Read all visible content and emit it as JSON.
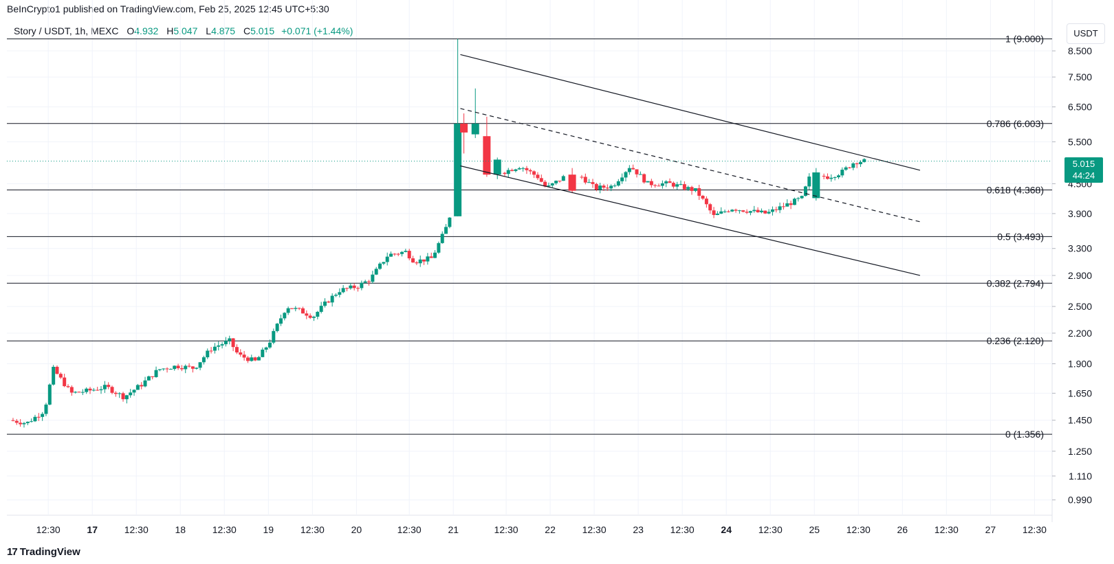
{
  "header": {
    "published": "BeInCrypto1 published on TradingView.com, Feb 25, 2025 12:45 UTC+5:30"
  },
  "legend": {
    "symbol": "Story / USDT, 1h, MEXC",
    "open_label": "O",
    "open": "4.932",
    "high_label": "H",
    "high": "5.047",
    "low_label": "L",
    "low": "4.875",
    "close_label": "C",
    "close": "5.015",
    "change": "+0.071 (+1.44%)"
  },
  "unit_button": "USDT",
  "last_price": {
    "value": "5.015",
    "countdown": "44:24"
  },
  "footer": {
    "logo": "17",
    "brand": "TradingView"
  },
  "colors": {
    "up": "#089981",
    "down": "#f23645",
    "line": "#131722",
    "grid": "#f0f3fa",
    "price_line": "#089981"
  },
  "chart_data": {
    "type": "candlestick",
    "y_axis": {
      "min": 0.92,
      "max": 9.2,
      "ticks": [
        "8.500",
        "7.500",
        "6.500",
        "5.500",
        "4.500",
        "3.900",
        "3.300",
        "2.900",
        "2.500",
        "2.200",
        "1.900",
        "1.650",
        "1.450",
        "1.250",
        "1.110",
        "0.990"
      ]
    },
    "x_axis": {
      "ticks": [
        {
          "t": 0.4,
          "label": "12:30"
        },
        {
          "t": 0.9,
          "label": "17",
          "bold": true
        },
        {
          "t": 1.4,
          "label": "12:30"
        },
        {
          "t": 1.9,
          "label": "18"
        },
        {
          "t": 2.4,
          "label": "12:30"
        },
        {
          "t": 2.9,
          "label": "19"
        },
        {
          "t": 3.4,
          "label": "12:30"
        },
        {
          "t": 3.9,
          "label": "20"
        },
        {
          "t": 4.5,
          "label": "12:30"
        },
        {
          "t": 5.0,
          "label": "21"
        },
        {
          "t": 5.6,
          "label": "12:30"
        },
        {
          "t": 6.1,
          "label": "22"
        },
        {
          "t": 6.6,
          "label": "12:30"
        },
        {
          "t": 7.1,
          "label": "23"
        },
        {
          "t": 7.6,
          "label": "12:30"
        },
        {
          "t": 8.1,
          "label": "24",
          "bold": true
        },
        {
          "t": 8.6,
          "label": "12:30"
        },
        {
          "t": 9.1,
          "label": "25"
        },
        {
          "t": 9.6,
          "label": "12:30"
        },
        {
          "t": 10.1,
          "label": "26"
        },
        {
          "t": 10.6,
          "label": "12:30"
        },
        {
          "t": 11.1,
          "label": "27"
        },
        {
          "t": 11.6,
          "label": "12:30"
        }
      ]
    },
    "fib_levels": [
      {
        "price": 9.0,
        "label": "1 (9.000)"
      },
      {
        "price": 6.003,
        "label": "0.786 (6.003)"
      },
      {
        "price": 4.368,
        "label": "0.618 (4.368)"
      },
      {
        "price": 3.493,
        "label": "0.5 (3.493)"
      },
      {
        "price": 2.794,
        "label": "0.382 (2.794)"
      },
      {
        "price": 2.12,
        "label": "0.236 (2.120)"
      },
      {
        "price": 1.356,
        "label": "0 (1.356)"
      }
    ],
    "channel": {
      "upper": [
        [
          5.08,
          8.35
        ],
        [
          10.3,
          4.8
        ]
      ],
      "middle": [
        [
          5.08,
          6.45
        ],
        [
          10.3,
          3.75
        ]
      ],
      "lower": [
        [
          5.08,
          4.9
        ],
        [
          10.3,
          2.9
        ]
      ]
    },
    "keypoints": [
      [
        0.0,
        1.45
      ],
      [
        0.2,
        1.43
      ],
      [
        0.4,
        1.52
      ],
      [
        0.5,
        1.85
      ],
      [
        0.6,
        1.75
      ],
      [
        0.7,
        1.65
      ],
      [
        0.9,
        1.67
      ],
      [
        1.1,
        1.7
      ],
      [
        1.3,
        1.62
      ],
      [
        1.5,
        1.72
      ],
      [
        1.7,
        1.85
      ],
      [
        1.9,
        1.88
      ],
      [
        2.1,
        1.86
      ],
      [
        2.3,
        2.05
      ],
      [
        2.5,
        2.12
      ],
      [
        2.6,
        1.98
      ],
      [
        2.8,
        1.92
      ],
      [
        2.95,
        2.1
      ],
      [
        3.15,
        2.5
      ],
      [
        3.3,
        2.45
      ],
      [
        3.45,
        2.38
      ],
      [
        3.6,
        2.55
      ],
      [
        3.75,
        2.7
      ],
      [
        3.95,
        2.75
      ],
      [
        4.1,
        2.85
      ],
      [
        4.3,
        3.2
      ],
      [
        4.5,
        3.25
      ],
      [
        4.6,
        3.1
      ],
      [
        4.8,
        3.15
      ],
      [
        4.95,
        3.6
      ],
      [
        5.0,
        3.85
      ],
      [
        5.05,
        6.0
      ],
      [
        5.15,
        5.8
      ],
      [
        5.3,
        5.85
      ],
      [
        5.45,
        4.65
      ],
      [
        5.6,
        4.75
      ],
      [
        5.8,
        4.9
      ],
      [
        6.0,
        4.65
      ],
      [
        6.1,
        4.4
      ],
      [
        6.3,
        4.65
      ],
      [
        6.5,
        4.65
      ],
      [
        6.65,
        4.4
      ],
      [
        6.85,
        4.45
      ],
      [
        7.05,
        4.9
      ],
      [
        7.25,
        4.5
      ],
      [
        7.5,
        4.5
      ],
      [
        7.8,
        4.35
      ],
      [
        8.0,
        3.85
      ],
      [
        8.2,
        4.0
      ],
      [
        8.4,
        3.95
      ],
      [
        8.6,
        3.9
      ],
      [
        8.8,
        4.05
      ],
      [
        9.0,
        4.2
      ],
      [
        9.1,
        4.7
      ],
      [
        9.3,
        4.65
      ],
      [
        9.45,
        4.75
      ],
      [
        9.6,
        5.0
      ],
      [
        9.7,
        5.015
      ]
    ],
    "big_candles": [
      {
        "t": 5.05,
        "o": 3.85,
        "h": 9.0,
        "l": 3.85,
        "c": 6.0
      },
      {
        "t": 5.12,
        "o": 6.0,
        "h": 6.3,
        "l": 5.2,
        "c": 5.75
      },
      {
        "t": 5.25,
        "o": 5.7,
        "h": 7.1,
        "l": 5.6,
        "c": 6.0
      },
      {
        "t": 5.38,
        "o": 5.65,
        "h": 6.2,
        "l": 4.65,
        "c": 4.7
      },
      {
        "t": 5.5,
        "o": 4.7,
        "h": 5.1,
        "l": 4.6,
        "c": 5.05
      },
      {
        "t": 6.35,
        "o": 4.7,
        "h": 4.85,
        "l": 4.3,
        "c": 4.35
      },
      {
        "t": 9.12,
        "o": 4.2,
        "h": 4.85,
        "l": 4.15,
        "c": 4.75
      }
    ]
  }
}
